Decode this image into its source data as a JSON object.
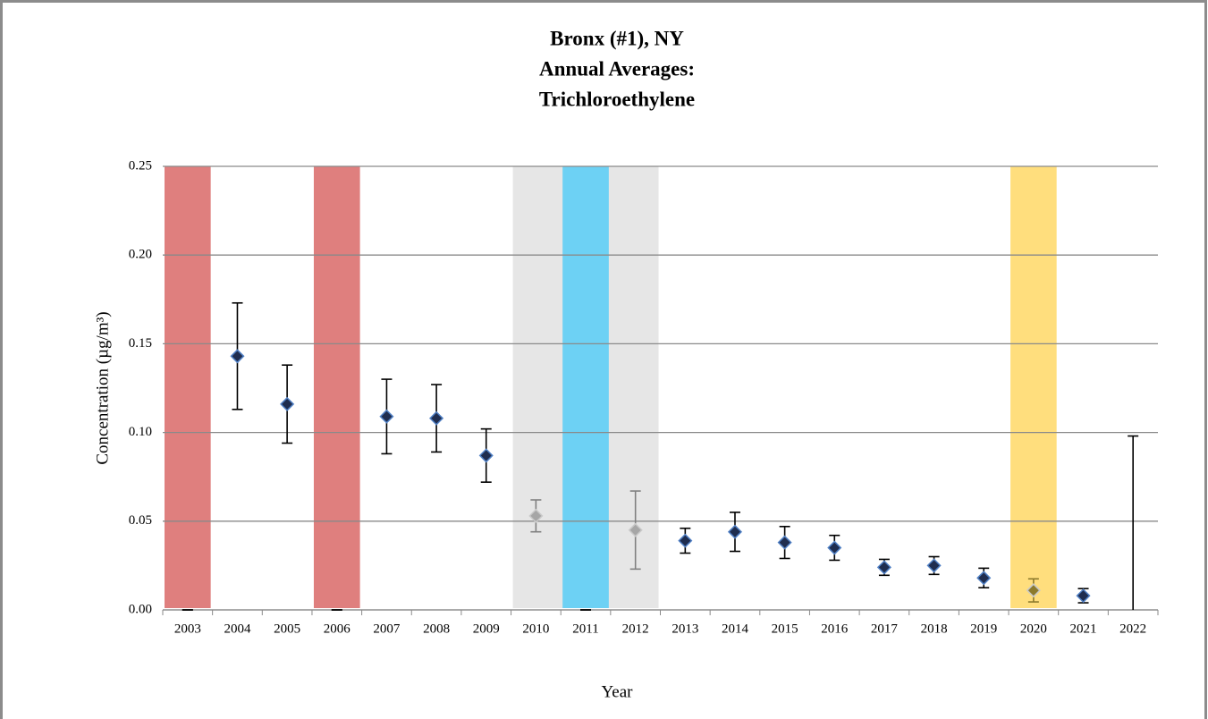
{
  "chart_data": {
    "type": "errorbar",
    "title": [
      "Bronx (#1), NY",
      "Annual Averages:",
      "Trichloroethylene"
    ],
    "x_label": "Year",
    "y_label": "Concentration (µg/m³)",
    "categories": [
      "2003",
      "2004",
      "2005",
      "2006",
      "2007",
      "2008",
      "2009",
      "2010",
      "2011",
      "2012",
      "2013",
      "2014",
      "2015",
      "2016",
      "2017",
      "2018",
      "2019",
      "2020",
      "2021",
      "2022"
    ],
    "series": [
      {
        "values": [
          0,
          0.143,
          0.116,
          0,
          0.109,
          0.108,
          0.087,
          0.053,
          0,
          0.045,
          0.039,
          0.044,
          0.038,
          0.035,
          0.024,
          0.025,
          0.018,
          0.011,
          0.008,
          0
        ],
        "errors": [
          0,
          0.03,
          0.022,
          0,
          0.021,
          0.019,
          0.015,
          0.009,
          0,
          0.022,
          0.007,
          0.011,
          0.009,
          0.007,
          0.0045,
          0.005,
          0.0055,
          0.0065,
          0.004,
          0.098
        ],
        "marker_colors": [
          "#1f2d4f",
          "#1f2d4f",
          "#1f2d4f",
          "#1f2d4f",
          "#1f2d4f",
          "#1f2d4f",
          "#1f2d4f",
          "#a6a6a6",
          "#1f2d4f",
          "#a6a6a6",
          "#1f2d4f",
          "#1f2d4f",
          "#1f2d4f",
          "#1f2d4f",
          "#1f2d4f",
          "#1f2d4f",
          "#1f2d4f",
          "#8c7a2c",
          "#1f2d4f",
          "#1f2d4f"
        ],
        "errorbar_colors": [
          "#000",
          "#000",
          "#000",
          "#000",
          "#000",
          "#000",
          "#000",
          "#808080",
          "#000",
          "#808080",
          "#000",
          "#000",
          "#000",
          "#000",
          "#000",
          "#000",
          "#000",
          "#8c7a2c",
          "#000",
          "#000"
        ]
      }
    ],
    "highlights": [
      {
        "start": "2003",
        "end": "2003",
        "color": "#df7f7e"
      },
      {
        "start": "2006",
        "end": "2006",
        "color": "#df7f7e"
      },
      {
        "start": "2010",
        "end": "2012",
        "color": "#e6e6e6"
      },
      {
        "start": "2011",
        "end": "2011",
        "color": "#6dd1f4"
      },
      {
        "start": "2020",
        "end": "2020",
        "color": "#ffde7d"
      }
    ],
    "ylim": [
      0,
      0.25
    ],
    "yticks": [
      {
        "value": 0,
        "label": "0.00"
      },
      {
        "value": 0.05,
        "label": "0.05"
      },
      {
        "value": 0.1,
        "label": "0.10"
      },
      {
        "value": 0.15,
        "label": "0.15"
      },
      {
        "value": 0.2,
        "label": "0.20"
      },
      {
        "value": 0.25,
        "label": "0.25"
      }
    ],
    "grid": true
  }
}
